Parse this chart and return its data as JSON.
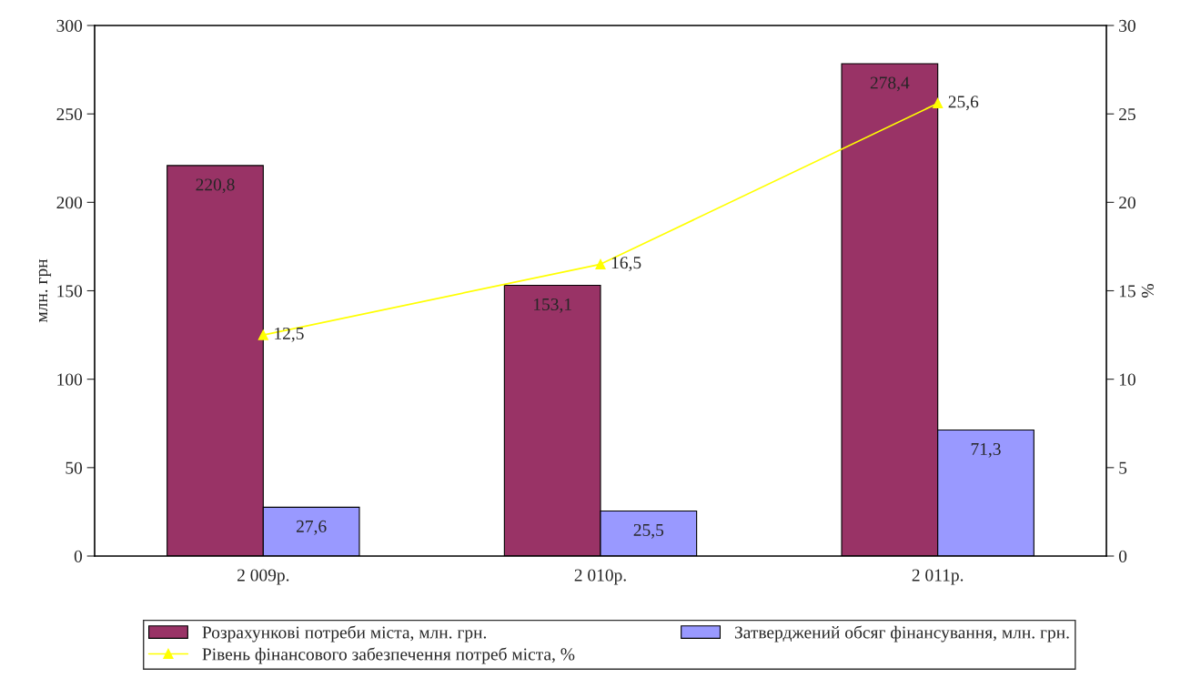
{
  "chart_data": {
    "type": "bar",
    "categories": [
      "2 009р.",
      "2 010р.",
      "2 011р."
    ],
    "ylabel": "млн. грн",
    "y2label": "%",
    "ylim": [
      0,
      300
    ],
    "yticks": [
      0,
      50,
      100,
      150,
      200,
      250,
      300
    ],
    "y2lim": [
      0,
      30
    ],
    "y2ticks": [
      0,
      5,
      10,
      15,
      20,
      25,
      30
    ],
    "grid": false,
    "legend": "bottom",
    "series": [
      {
        "name": "Розрахункові потреби міста, млн. грн.",
        "color": "#993366",
        "values": [
          220.8,
          153.1,
          278.4
        ],
        "value_labels": [
          "220,8",
          "153,1",
          "278,4"
        ]
      },
      {
        "name": "Затверджений обсяг фінансування, млн. грн.",
        "color": "#9999ff",
        "values": [
          27.6,
          25.5,
          71.3
        ],
        "value_labels": [
          "27,6",
          "25,5",
          "71,3"
        ]
      },
      {
        "name": "Рівень фінансового забезпечення потреб міста, %",
        "type": "line",
        "axis": "y2",
        "color": "#ffff00",
        "marker": "triangle",
        "line_style": "solid",
        "values": [
          12.5,
          16.5,
          25.6
        ],
        "value_labels": [
          "12,5",
          "16,5",
          "25,6"
        ]
      }
    ]
  }
}
